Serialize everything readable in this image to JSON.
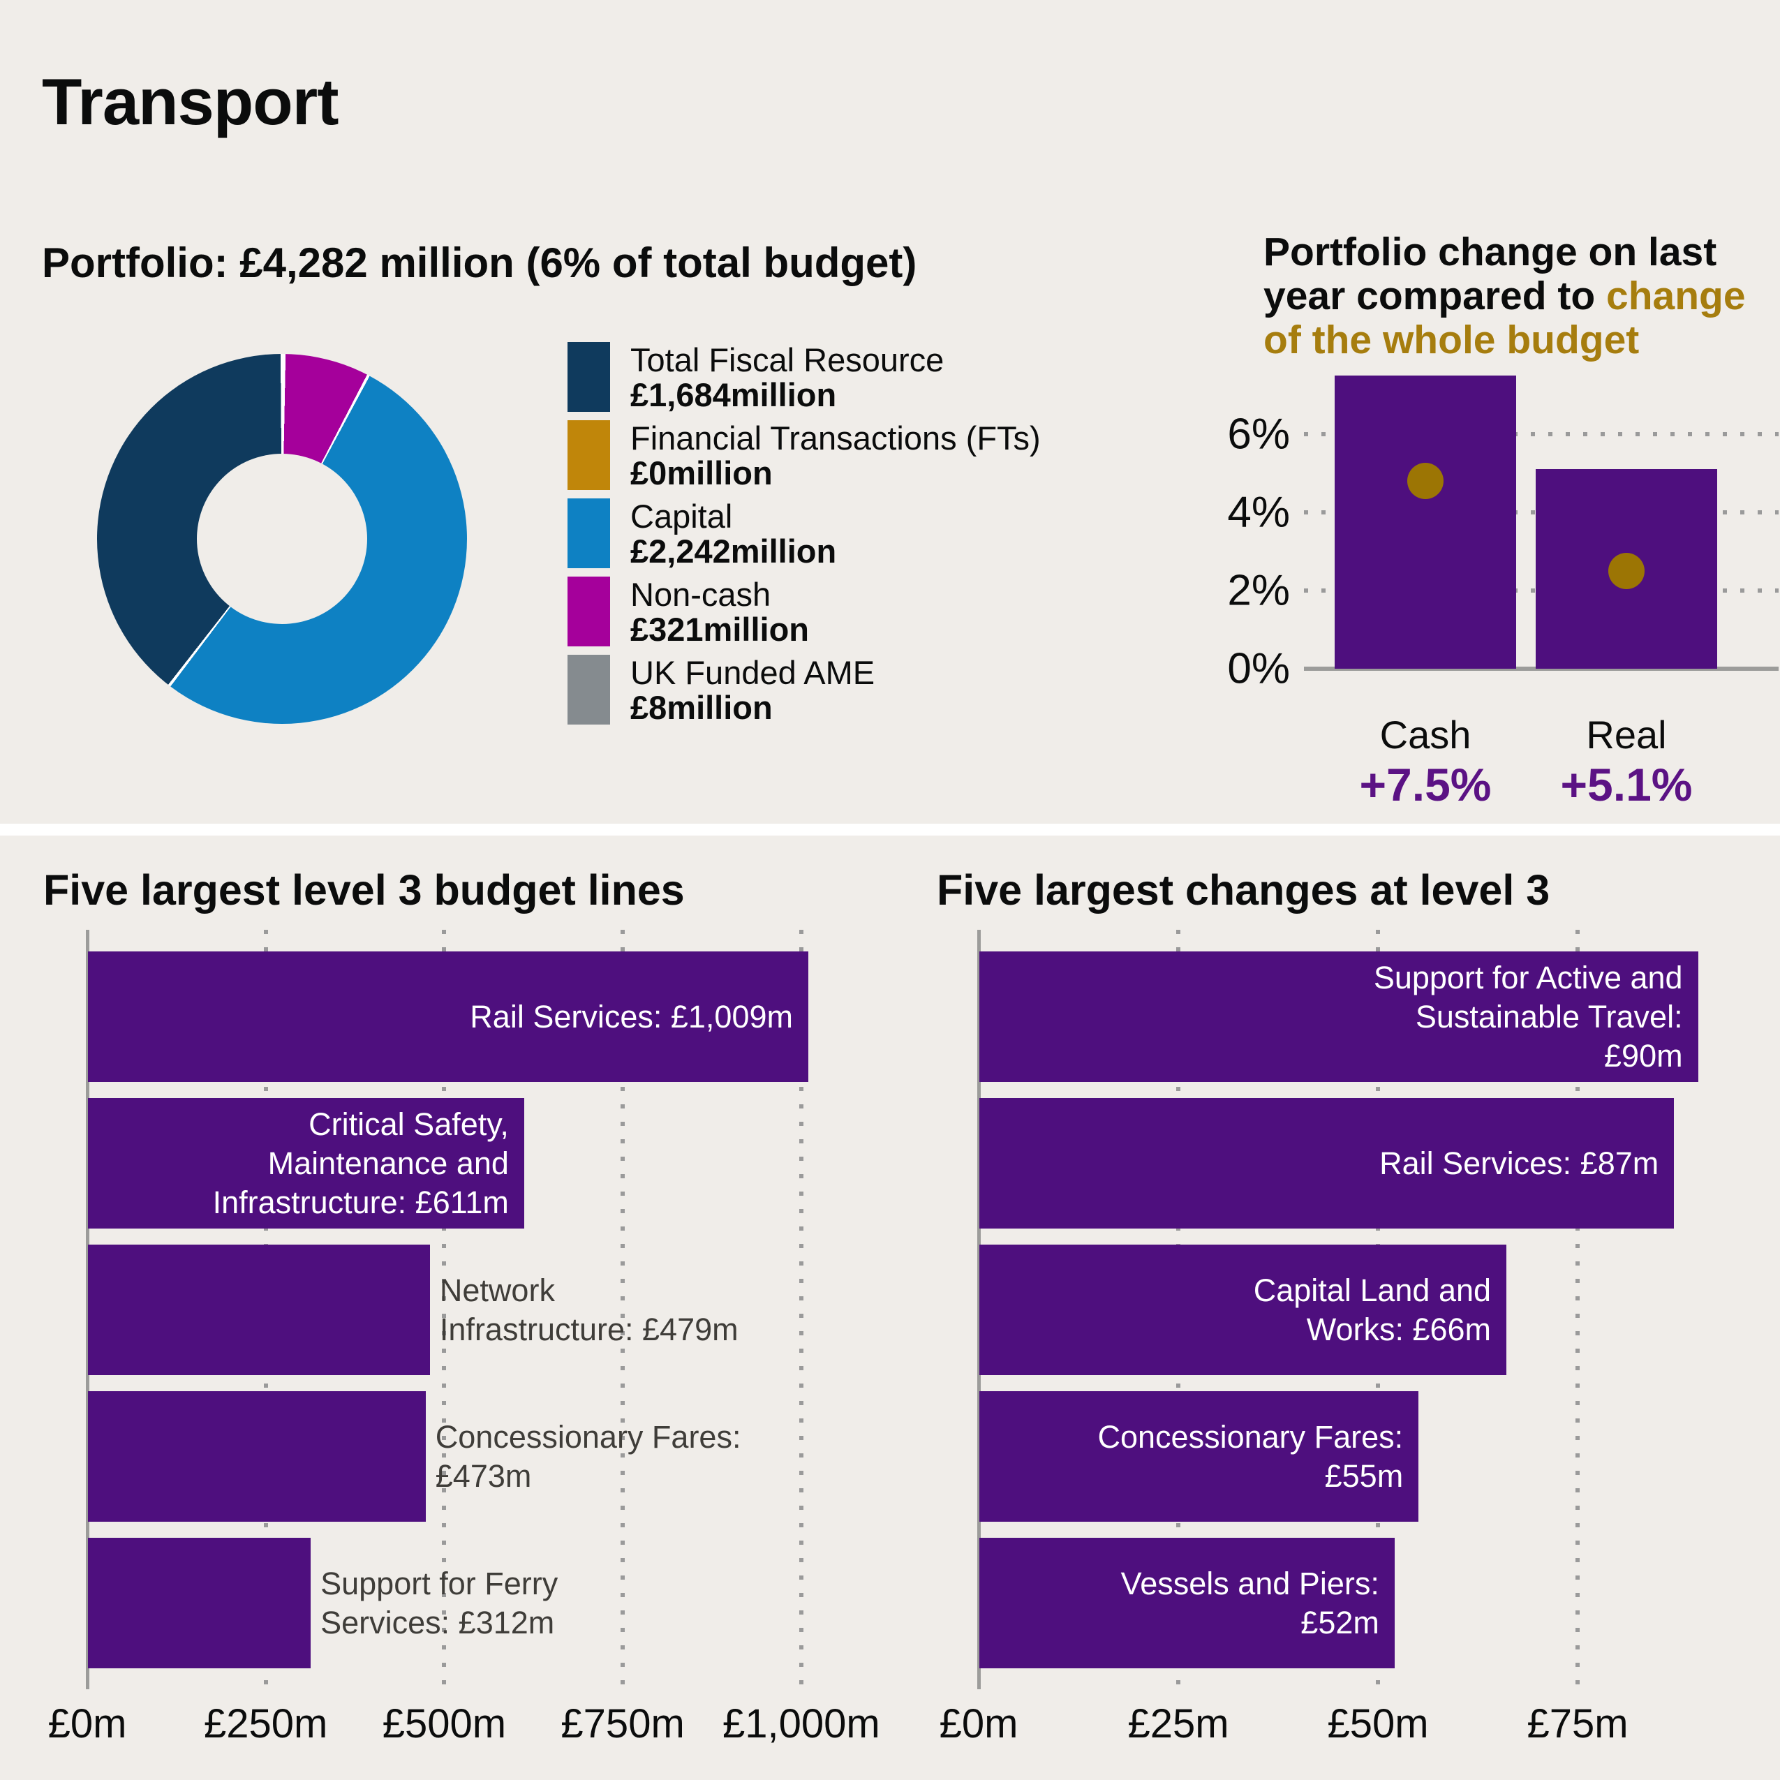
{
  "page": {
    "title": "Transport",
    "background_color": "#F0EDE9"
  },
  "colors": {
    "bar_purple": "#4E0F7E",
    "dot_gold": "#9C7504",
    "title_gold": "#A67D0E",
    "pct_text_purple": "#5B1284",
    "outside_label_gray": "#3F3D39",
    "axis_gray": "#9C9C9A",
    "grid_dot_gray": "#9A9A9A"
  },
  "portfolio": {
    "heading": "Portfolio: £4,282 million (6% of total budget)",
    "legend": [
      {
        "label": "Total Fiscal Resource",
        "value_label": "£1,684million",
        "amount_m": 1684,
        "color": "#0F3A5D"
      },
      {
        "label": "Financial Transactions (FTs)",
        "value_label": "£0million",
        "amount_m": 0,
        "color": "#C0860A"
      },
      {
        "label": "Capital",
        "value_label": "£2,242million",
        "amount_m": 2242,
        "color": "#0E81C3"
      },
      {
        "label": "Non-cash",
        "value_label": "£321million",
        "amount_m": 321,
        "color": "#A5009B"
      },
      {
        "label": "UK Funded AME",
        "value_label": "£8million",
        "amount_m": 8,
        "color": "#858B8F"
      }
    ]
  },
  "change_panel": {
    "title_lines": [
      [
        {
          "text": "Portfolio change on last",
          "gold": false
        }
      ],
      [
        {
          "text": "year compared to ",
          "gold": false
        },
        {
          "text": "change",
          "gold": true
        }
      ],
      [
        {
          "text": "of the whole budget",
          "gold": true
        }
      ]
    ],
    "y_ticks": [
      {
        "label": "0%",
        "value": 0
      },
      {
        "label": "2%",
        "value": 2
      },
      {
        "label": "4%",
        "value": 4
      },
      {
        "label": "6%",
        "value": 6
      }
    ],
    "bars": [
      {
        "category": "Cash",
        "change_label": "+7.5%",
        "portfolio_change_pct": 7.5,
        "whole_budget_change_pct": 4.8
      },
      {
        "category": "Real",
        "change_label": "+5.1%",
        "portfolio_change_pct": 5.1,
        "whole_budget_change_pct": 2.5
      }
    ]
  },
  "largest_lines": {
    "title": "Five largest level 3 budget lines",
    "x_ticks": [
      {
        "label": "£0m",
        "value": 0
      },
      {
        "label": "£250m",
        "value": 250
      },
      {
        "label": "£500m",
        "value": 500
      },
      {
        "label": "£750m",
        "value": 750
      },
      {
        "label": "£1,000m",
        "value": 1000
      }
    ],
    "bars": [
      {
        "name": "Rail Services",
        "value_m": 1009,
        "label_lines": [
          "Rail Services: £1,009m"
        ],
        "label_placement": "inside"
      },
      {
        "name": "Critical Safety, Maintenance and Infrastructure",
        "value_m": 611,
        "label_lines": [
          "Critical Safety,",
          "Maintenance and",
          "Infrastructure: £611m"
        ],
        "label_placement": "inside"
      },
      {
        "name": "Network Infrastructure",
        "value_m": 479,
        "label_lines": [
          "Network",
          "Infrastructure: £479m"
        ],
        "label_placement": "outside"
      },
      {
        "name": "Concessionary Fares",
        "value_m": 473,
        "label_lines": [
          "Concessionary Fares:",
          "£473m"
        ],
        "label_placement": "outside"
      },
      {
        "name": "Support for Ferry Services",
        "value_m": 312,
        "label_lines": [
          "Support for Ferry",
          "Services: £312m"
        ],
        "label_placement": "outside"
      }
    ]
  },
  "largest_changes": {
    "title": "Five largest changes at level 3",
    "x_ticks": [
      {
        "label": "£0m",
        "value": 0
      },
      {
        "label": "£25m",
        "value": 25
      },
      {
        "label": "£50m",
        "value": 50
      },
      {
        "label": "£75m",
        "value": 75
      }
    ],
    "bars": [
      {
        "name": "Support for Active and Sustainable Travel",
        "value_m": 90,
        "label_lines": [
          "Support for Active and",
          "Sustainable Travel:",
          "£90m"
        ],
        "label_placement": "inside"
      },
      {
        "name": "Rail Services",
        "value_m": 87,
        "label_lines": [
          "Rail Services: £87m"
        ],
        "label_placement": "inside"
      },
      {
        "name": "Capital Land and Works",
        "value_m": 66,
        "label_lines": [
          "Capital Land and",
          "Works: £66m"
        ],
        "label_placement": "inside"
      },
      {
        "name": "Concessionary Fares",
        "value_m": 55,
        "label_lines": [
          "Concessionary Fares:",
          "£55m"
        ],
        "label_placement": "inside"
      },
      {
        "name": "Vessels and Piers",
        "value_m": 52,
        "label_lines": [
          "Vessels and Piers:",
          "£52m"
        ],
        "label_placement": "inside"
      }
    ]
  },
  "chart_data": [
    {
      "type": "pie",
      "subtype": "donut",
      "title": "Portfolio: £4,282 million (6% of total budget)",
      "labels": [
        "Total Fiscal Resource",
        "Financial Transactions (FTs)",
        "Capital",
        "Non-cash",
        "UK Funded AME"
      ],
      "values": [
        1684,
        0,
        2242,
        321,
        8
      ],
      "value_labels": [
        "£1,684million",
        "£0million",
        "£2,242million",
        "£321million",
        "£8million"
      ],
      "colors": [
        "#0F3A5D",
        "#C0860A",
        "#0E81C3",
        "#A5009B",
        "#858B8F"
      ],
      "legend_position": "right"
    },
    {
      "type": "bar",
      "title": "Portfolio change on last year compared to change of the whole budget",
      "categories": [
        "Cash",
        "Real"
      ],
      "series": [
        {
          "name": "Portfolio change on last year",
          "values": [
            7.5,
            5.1
          ],
          "style": "bar",
          "color": "#4E0F7E"
        },
        {
          "name": "Change of the whole budget",
          "values": [
            4.8,
            2.5
          ],
          "style": "dot",
          "color": "#9C7504"
        }
      ],
      "data_labels": [
        "+7.5%",
        "+5.1%"
      ],
      "ylim": [
        0,
        7.5
      ],
      "yticks": [
        0,
        2,
        4,
        6
      ],
      "grid": "dotted-horizontal"
    },
    {
      "type": "bar",
      "orientation": "horizontal",
      "title": "Five largest level 3 budget lines",
      "categories": [
        "Rail Services",
        "Critical Safety, Maintenance and Infrastructure",
        "Network Infrastructure",
        "Concessionary Fares",
        "Support for Ferry Services"
      ],
      "values": [
        1009,
        611,
        479,
        473,
        312
      ],
      "xlabel": "£m",
      "xlim": [
        0,
        1000
      ],
      "xticks": [
        0,
        250,
        500,
        750,
        1000
      ],
      "grid": "dotted-vertical"
    },
    {
      "type": "bar",
      "orientation": "horizontal",
      "title": "Five largest changes at level 3",
      "categories": [
        "Support for Active and Sustainable Travel",
        "Rail Services",
        "Capital Land and Works",
        "Concessionary Fares",
        "Vessels and Piers"
      ],
      "values": [
        90,
        87,
        66,
        55,
        52
      ],
      "xlabel": "£m",
      "xlim": [
        0,
        75
      ],
      "xticks": [
        0,
        25,
        50,
        75
      ],
      "grid": "dotted-vertical"
    }
  ]
}
